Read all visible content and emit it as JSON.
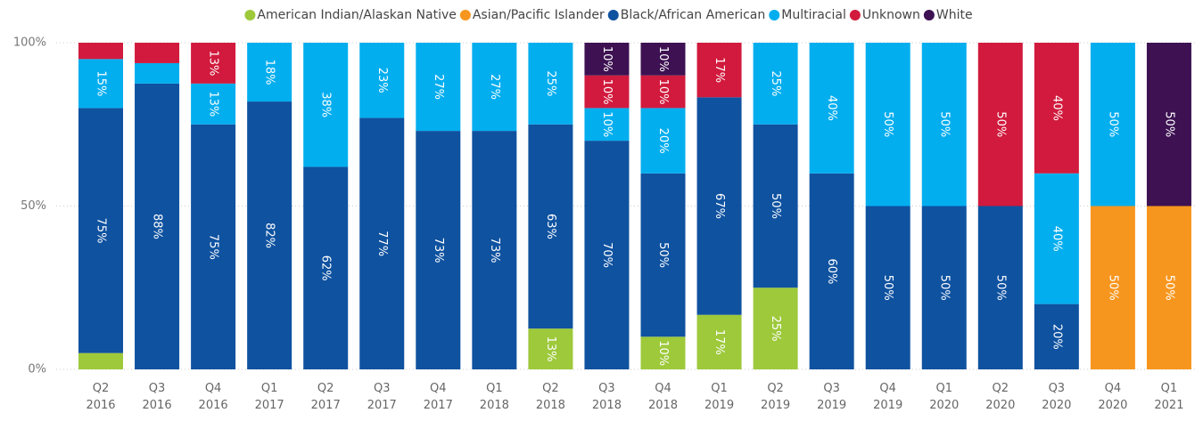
{
  "chart_data": {
    "type": "stacked_bar_100",
    "categories": [
      "Q2 2016",
      "Q3 2016",
      "Q4 2016",
      "Q1 2017",
      "Q2 2017",
      "Q3 2017",
      "Q4 2017",
      "Q1 2018",
      "Q2 2018",
      "Q3 2018",
      "Q4 2018",
      "Q1 2019",
      "Q2 2019",
      "Q3 2019",
      "Q4 2019",
      "Q1 2020",
      "Q2 2020",
      "Q3 2020",
      "Q4 2020",
      "Q1 2021"
    ],
    "series": [
      {
        "name": "American Indian/Alaskan Native",
        "color": "#9dc93b",
        "values": [
          5,
          null,
          null,
          null,
          null,
          null,
          null,
          null,
          12.5,
          null,
          10,
          16.7,
          25,
          null,
          null,
          null,
          null,
          null,
          null,
          null
        ],
        "value_labels": [
          null,
          null,
          null,
          null,
          null,
          null,
          null,
          null,
          "13%",
          null,
          "10%",
          "17%",
          "25%",
          null,
          null,
          null,
          null,
          null,
          null,
          null
        ]
      },
      {
        "name": "Asian/Pacific Islander",
        "color": "#f7961e",
        "values": [
          null,
          null,
          null,
          null,
          null,
          null,
          null,
          null,
          null,
          null,
          null,
          null,
          null,
          null,
          null,
          null,
          null,
          null,
          50,
          50
        ],
        "value_labels": [
          null,
          null,
          null,
          null,
          null,
          null,
          null,
          null,
          null,
          null,
          null,
          null,
          null,
          null,
          null,
          null,
          null,
          null,
          "50%",
          "50%"
        ]
      },
      {
        "name": "Black/African American",
        "color": "#0f52a0",
        "values": [
          75,
          87.5,
          75,
          82,
          62,
          77,
          73,
          73,
          62.5,
          70,
          50,
          66.6,
          50,
          60,
          50,
          50,
          50,
          20,
          null,
          null
        ],
        "value_labels": [
          "75%",
          "88%",
          "75%",
          "82%",
          "62%",
          "77%",
          "73%",
          "73%",
          "63%",
          "70%",
          "50%",
          "67%",
          "50%",
          "60%",
          "50%",
          "50%",
          "50%",
          "20%",
          null,
          null
        ]
      },
      {
        "name": "Multiracial",
        "color": "#03aeef",
        "values": [
          15,
          6.25,
          12.5,
          18,
          38,
          23,
          27,
          27,
          25,
          10,
          20,
          null,
          25,
          40,
          50,
          50,
          null,
          40,
          50,
          null
        ],
        "value_labels": [
          "15%",
          null,
          "13%",
          "18%",
          "38%",
          "23%",
          "27%",
          "27%",
          "25%",
          "10%",
          "20%",
          null,
          "25%",
          "40%",
          "50%",
          "50%",
          null,
          "40%",
          "50%",
          null
        ]
      },
      {
        "name": "Unknown",
        "color": "#d11a3d",
        "values": [
          5,
          6.25,
          12.5,
          null,
          null,
          null,
          null,
          null,
          null,
          10,
          10,
          16.7,
          null,
          null,
          null,
          null,
          50,
          40,
          null,
          null
        ],
        "value_labels": [
          null,
          null,
          "13%",
          null,
          null,
          null,
          null,
          null,
          null,
          "10%",
          "10%",
          "17%",
          null,
          null,
          null,
          null,
          "50%",
          "40%",
          null,
          null
        ]
      },
      {
        "name": "White",
        "color": "#3d1152",
        "values": [
          null,
          null,
          null,
          null,
          null,
          null,
          null,
          null,
          null,
          10,
          10,
          null,
          null,
          null,
          null,
          null,
          null,
          null,
          null,
          50
        ],
        "value_labels": [
          null,
          null,
          null,
          null,
          null,
          null,
          null,
          null,
          null,
          "10%",
          "10%",
          null,
          null,
          null,
          null,
          null,
          null,
          null,
          null,
          "50%"
        ]
      }
    ],
    "ylim": [
      0,
      100
    ],
    "yticks": [
      {
        "value": 0,
        "label": "0%"
      },
      {
        "value": 50,
        "label": "50%"
      },
      {
        "value": 100,
        "label": "100%"
      }
    ],
    "grid": true,
    "legend": "top"
  }
}
